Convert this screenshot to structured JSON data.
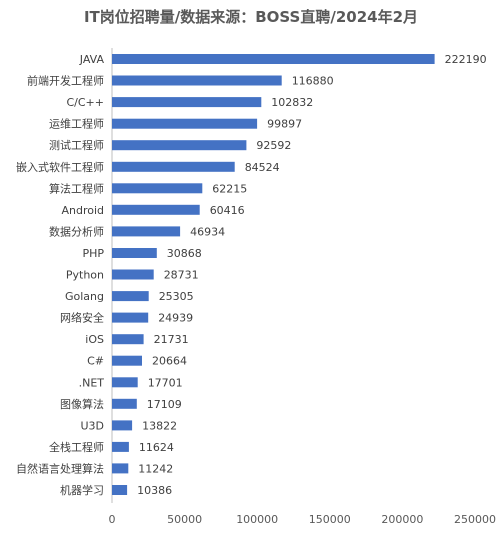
{
  "chart_data": {
    "type": "bar",
    "orientation": "horizontal",
    "title": "IT岗位招聘量/数据来源：BOSS直聘/2024年2月",
    "categories": [
      "JAVA",
      "前端开发工程师",
      "C/C++",
      "运维工程师",
      "测试工程师",
      "嵌入式软件工程师",
      "算法工程师",
      "Android",
      "数据分析师",
      "PHP",
      "Python",
      "Golang",
      "网络安全",
      "iOS",
      "C#",
      ".NET",
      "图像算法",
      "U3D",
      "全栈工程师",
      "自然语言处理算法",
      "机器学习"
    ],
    "values": [
      222190,
      116880,
      102832,
      99897,
      92592,
      84524,
      62215,
      60416,
      46934,
      30868,
      28731,
      25305,
      24939,
      21731,
      20664,
      17701,
      17109,
      13822,
      11624,
      11242,
      10386
    ],
    "value_labels": [
      "222190",
      "116880",
      "102832",
      "99897",
      "92592",
      "84524",
      "62215",
      "60416",
      "46934",
      "30868",
      "28731",
      "25305",
      "24939",
      "21731",
      "20664",
      "17701",
      "17109",
      "13822",
      "11624",
      "11242",
      "10386"
    ],
    "xlim": [
      0,
      250000
    ],
    "xticks": [
      "0",
      "50000",
      "100000",
      "150000",
      "200000",
      "250000"
    ],
    "xtick_values": [
      0,
      50000,
      100000,
      150000,
      200000,
      250000
    ],
    "bar_color": "#4472C4",
    "grid": false,
    "legend": "none"
  }
}
